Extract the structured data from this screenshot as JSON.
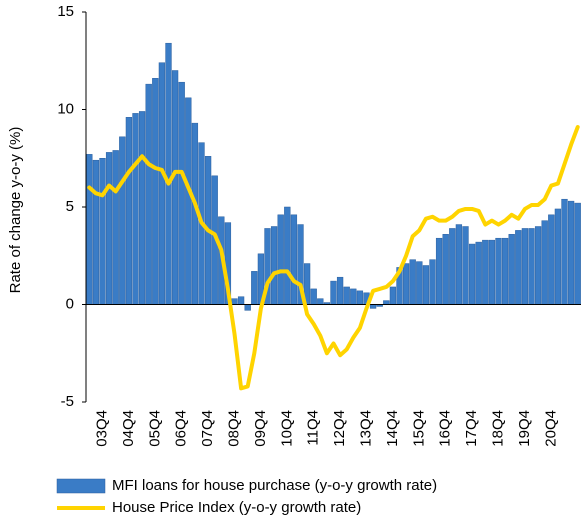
{
  "chart_data": {
    "type": "bar",
    "ylabel": "Rate of change y-o-y (%)",
    "categories": [
      null,
      null,
      "03Q4",
      null,
      null,
      null,
      "04Q4",
      null,
      null,
      null,
      "05Q4",
      null,
      null,
      null,
      "06Q4",
      null,
      null,
      null,
      "07Q4",
      null,
      null,
      null,
      "08Q4",
      null,
      null,
      null,
      "09Q4",
      null,
      null,
      null,
      "10Q4",
      null,
      null,
      null,
      "11Q4",
      null,
      null,
      null,
      "12Q4",
      null,
      null,
      null,
      "13Q4",
      null,
      null,
      null,
      "14Q4",
      null,
      null,
      null,
      "15Q4",
      null,
      null,
      null,
      "16Q4",
      null,
      null,
      null,
      "17Q4",
      null,
      null,
      null,
      "18Q4",
      null,
      null,
      null,
      "19Q4",
      null,
      null,
      null,
      "20Q4",
      null,
      null,
      null,
      null
    ],
    "series": [
      {
        "name": "MFI loans for house purchase (y-o-y growth rate)",
        "type": "bar",
        "color": "#3a7cc6",
        "values": [
          7.7,
          7.4,
          7.5,
          7.8,
          7.9,
          8.6,
          9.6,
          9.8,
          9.9,
          11.3,
          11.6,
          12.4,
          13.4,
          12.0,
          11.4,
          10.6,
          9.3,
          8.3,
          7.6,
          6.6,
          4.5,
          4.2,
          0.3,
          0.4,
          -0.3,
          1.7,
          2.6,
          3.9,
          4.0,
          4.6,
          5.0,
          4.6,
          4.1,
          2.1,
          0.8,
          0.3,
          0.1,
          1.2,
          1.4,
          0.9,
          0.8,
          0.7,
          0.6,
          -0.2,
          -0.1,
          0.2,
          0.9,
          1.9,
          2.1,
          2.3,
          2.2,
          2.0,
          2.3,
          3.4,
          3.6,
          3.9,
          4.1,
          4.0,
          3.1,
          3.2,
          3.3,
          3.3,
          3.4,
          3.4,
          3.6,
          3.8,
          3.9,
          3.9,
          4.0,
          4.3,
          4.6,
          4.9,
          5.4,
          5.3,
          5.2
        ]
      },
      {
        "name": "House Price Index (y-o-y growth rate)",
        "type": "line",
        "color": "#ffd400",
        "values": [
          6.0,
          5.7,
          5.6,
          6.1,
          5.8,
          6.3,
          6.8,
          7.2,
          7.6,
          7.2,
          7.0,
          6.9,
          6.2,
          6.8,
          6.8,
          6.0,
          5.2,
          4.2,
          3.8,
          3.6,
          2.8,
          0.8,
          -1.5,
          -4.3,
          -4.2,
          -2.5,
          -0.2,
          1.1,
          1.6,
          1.7,
          1.7,
          1.2,
          1.0,
          -0.5,
          -1.0,
          -1.6,
          -2.5,
          -2.0,
          -2.6,
          -2.3,
          -1.7,
          -1.2,
          -0.2,
          0.7,
          0.8,
          0.9,
          1.2,
          1.7,
          2.5,
          3.5,
          3.8,
          4.4,
          4.5,
          4.3,
          4.3,
          4.5,
          4.8,
          4.9,
          4.9,
          4.8,
          4.1,
          4.3,
          4.1,
          4.3,
          4.6,
          4.4,
          4.9,
          5.1,
          5.1,
          5.4,
          6.1,
          6.2,
          7.2,
          8.2,
          9.1
        ]
      }
    ],
    "ylim": [
      -5,
      15
    ],
    "yticks": [
      -5,
      0,
      5,
      10,
      15
    ],
    "grid": false
  }
}
